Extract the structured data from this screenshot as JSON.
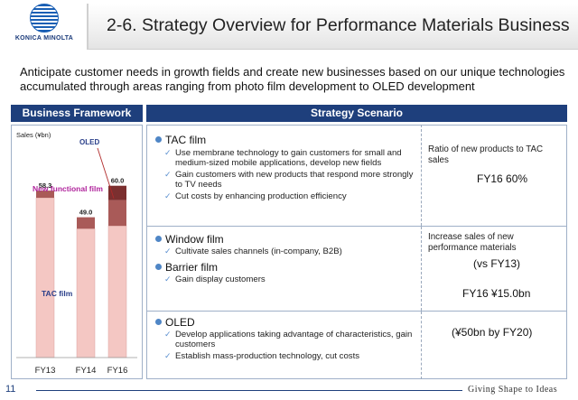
{
  "header": {
    "logo_text": "KONICA MINOLTA",
    "title": "2-6. Strategy Overview for Performance Materials Business"
  },
  "subtitle": "Anticipate customer needs in growth fields and create new businesses based on our unique technologies accumulated through areas ranging from photo film development to OLED development",
  "left_panel": {
    "header": "Business Framework"
  },
  "right_panel": {
    "header": "Strategy Scenario",
    "sections": [
      {
        "items": [
          {
            "title": "TAC film",
            "bullets": [
              "Use membrane technology to gain customers for small and medium-sized mobile applications, develop new fields",
              "Gain customers with new products that respond more strongly to TV needs",
              "Cut costs by enhancing production efficiency"
            ]
          }
        ],
        "right_label": "Ratio of new products to TAC sales",
        "right_value": "FY16  60%"
      },
      {
        "items": [
          {
            "title": "Window film",
            "bullets": [
              "Cultivate sales channels (in-company, B2B)"
            ]
          },
          {
            "title": "Barrier film",
            "bullets": [
              "Gain display customers"
            ]
          }
        ],
        "right_label": "Increase sales of new performance materials",
        "right_value": "(vs FY13)",
        "right_value2": "FY16  ¥15.0bn"
      },
      {
        "items": [
          {
            "title": "OLED",
            "bullets": [
              "Develop applications taking advantage of characteristics, gain customers",
              "Establish mass-production technology, cut costs"
            ]
          }
        ],
        "right_value": "(¥50bn by FY20)"
      }
    ]
  },
  "footer": {
    "page_number": "11",
    "slogan": "Giving Shape to Ideas"
  },
  "colors": {
    "header_blue": "#1e3f7c",
    "tac_bar": "#f4c7c3",
    "new_functional_bar": "#a95a58",
    "oled_bar": "#7b2f2f",
    "magenta_label": "#b0249c",
    "navy_label": "#2a3f8a"
  },
  "chart_data": {
    "type": "bar",
    "ylabel": "Sales (¥bn)",
    "categories": [
      "FY13",
      "FY14",
      "FY16"
    ],
    "totals": [
      58.3,
      49.0,
      60.0
    ],
    "series": [
      {
        "name": "TAC film",
        "values": [
          55.8,
          45.0,
          46.0
        ]
      },
      {
        "name": "New functional film",
        "values": [
          2.5,
          4.0,
          9.0
        ]
      },
      {
        "name": "OLED",
        "values": [
          0,
          0,
          5.0
        ]
      }
    ],
    "total_labels": [
      "58.3",
      "49.0",
      "60.0"
    ],
    "ylim": [
      0,
      70
    ]
  }
}
